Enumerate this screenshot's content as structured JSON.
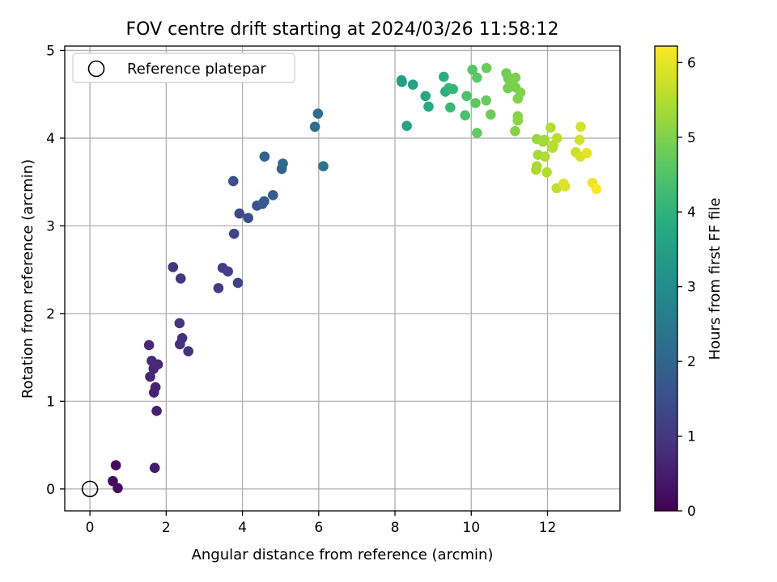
{
  "chart_data": {
    "type": "scatter",
    "title": "FOV centre drift starting at 2024/03/26 11:58:12",
    "xlabel": "Angular distance from reference (arcmin)",
    "ylabel": "Rotation from reference (arcmin)",
    "xlim": [
      -0.66,
      13.9
    ],
    "ylim": [
      -0.25,
      5.05
    ],
    "xticks": [
      0,
      2,
      4,
      6,
      8,
      10,
      12
    ],
    "xtick_labels": [
      "0",
      "2",
      "4",
      "6",
      "8",
      "10",
      "12"
    ],
    "yticks": [
      0,
      1,
      2,
      3,
      4,
      5
    ],
    "ytick_labels": [
      "0",
      "1",
      "2",
      "3",
      "4",
      "5"
    ],
    "grid": true,
    "legend": {
      "position": "top-left",
      "entries": [
        "Reference platepar"
      ]
    },
    "reference_point": {
      "x": 0,
      "y": 0,
      "label": "Reference platepar"
    },
    "colorbar": {
      "label": "Hours from first FF file",
      "colormap": "viridis",
      "range": [
        0,
        6.22
      ],
      "ticks": [
        0,
        1,
        2,
        3,
        4,
        5,
        6
      ],
      "tick_labels": [
        "0",
        "1",
        "2",
        "3",
        "4",
        "5",
        "6"
      ]
    },
    "points": [
      [
        0.6,
        0.09,
        0.15
      ],
      [
        0.68,
        0.27,
        0.2
      ],
      [
        0.73,
        0.01,
        0.25
      ],
      [
        1.7,
        0.24,
        0.45
      ],
      [
        1.75,
        0.89,
        0.55
      ],
      [
        1.68,
        1.1,
        0.6
      ],
      [
        1.72,
        1.16,
        0.62
      ],
      [
        1.58,
        1.28,
        0.65
      ],
      [
        1.67,
        1.37,
        0.68
      ],
      [
        1.78,
        1.42,
        0.7
      ],
      [
        1.62,
        1.46,
        0.72
      ],
      [
        1.55,
        1.64,
        0.75
      ],
      [
        2.36,
        1.65,
        0.85
      ],
      [
        2.42,
        1.72,
        0.88
      ],
      [
        2.58,
        1.57,
        0.9
      ],
      [
        2.35,
        1.89,
        0.92
      ],
      [
        2.18,
        2.53,
        0.95
      ],
      [
        2.38,
        2.4,
        0.98
      ],
      [
        3.37,
        2.29,
        1.1
      ],
      [
        3.48,
        2.52,
        1.15
      ],
      [
        3.62,
        2.48,
        1.2
      ],
      [
        3.88,
        2.35,
        1.25
      ],
      [
        3.78,
        2.91,
        1.3
      ],
      [
        3.92,
        3.14,
        1.35
      ],
      [
        4.15,
        3.09,
        1.45
      ],
      [
        3.76,
        3.51,
        1.5
      ],
      [
        4.38,
        3.23,
        1.6
      ],
      [
        4.52,
        3.25,
        1.7
      ],
      [
        4.57,
        3.28,
        1.75
      ],
      [
        4.8,
        3.35,
        1.85
      ],
      [
        4.58,
        3.79,
        1.95
      ],
      [
        5.03,
        3.65,
        2.0
      ],
      [
        5.06,
        3.71,
        2.05
      ],
      [
        5.9,
        4.13,
        2.2
      ],
      [
        5.98,
        4.28,
        2.25
      ],
      [
        6.12,
        3.68,
        2.35
      ],
      [
        8.18,
        4.64,
        3.4
      ],
      [
        8.17,
        4.66,
        3.45
      ],
      [
        8.47,
        4.61,
        3.55
      ],
      [
        8.31,
        4.14,
        3.6
      ],
      [
        8.8,
        4.48,
        3.7
      ],
      [
        8.88,
        4.36,
        3.75
      ],
      [
        9.28,
        4.7,
        3.9
      ],
      [
        9.32,
        4.53,
        3.95
      ],
      [
        9.41,
        4.57,
        4.05
      ],
      [
        9.52,
        4.56,
        4.1
      ],
      [
        9.45,
        4.35,
        4.15
      ],
      [
        9.84,
        4.26,
        4.4
      ],
      [
        9.88,
        4.48,
        4.45
      ],
      [
        10.03,
        4.78,
        4.55
      ],
      [
        10.15,
        4.69,
        4.6
      ],
      [
        10.11,
        4.4,
        4.65
      ],
      [
        10.15,
        4.06,
        4.7
      ],
      [
        10.39,
        4.43,
        4.75
      ],
      [
        10.4,
        4.8,
        4.78
      ],
      [
        10.51,
        4.27,
        4.8
      ],
      [
        10.92,
        4.74,
        4.85
      ],
      [
        10.97,
        4.68,
        4.88
      ],
      [
        10.96,
        4.57,
        4.9
      ],
      [
        11.03,
        4.63,
        4.92
      ],
      [
        11.16,
        4.69,
        4.95
      ],
      [
        11.16,
        4.58,
        4.97
      ],
      [
        11.22,
        4.45,
        5.0
      ],
      [
        11.29,
        4.52,
        5.0
      ],
      [
        11.15,
        4.08,
        5.05
      ],
      [
        11.22,
        4.25,
        5.05
      ],
      [
        11.22,
        4.2,
        5.1
      ],
      [
        11.72,
        3.99,
        5.25
      ],
      [
        11.88,
        3.96,
        5.3
      ],
      [
        11.92,
        3.98,
        5.35
      ],
      [
        11.75,
        3.81,
        5.35
      ],
      [
        11.72,
        3.68,
        5.4
      ],
      [
        11.7,
        3.64,
        5.42
      ],
      [
        11.93,
        3.79,
        5.45
      ],
      [
        11.98,
        3.61,
        5.48
      ],
      [
        12.08,
        4.12,
        5.5
      ],
      [
        12.15,
        3.92,
        5.55
      ],
      [
        12.13,
        3.89,
        5.55
      ],
      [
        12.25,
        4.0,
        5.6
      ],
      [
        12.24,
        3.43,
        5.65
      ],
      [
        12.74,
        3.84,
        5.75
      ],
      [
        12.84,
        3.98,
        5.8
      ],
      [
        12.87,
        4.13,
        5.82
      ],
      [
        12.86,
        3.79,
        5.85
      ],
      [
        12.42,
        3.48,
        5.9
      ],
      [
        12.46,
        3.45,
        5.92
      ],
      [
        13.03,
        3.83,
        6.0
      ],
      [
        13.18,
        3.49,
        6.1
      ],
      [
        13.28,
        3.42,
        6.2
      ]
    ]
  }
}
